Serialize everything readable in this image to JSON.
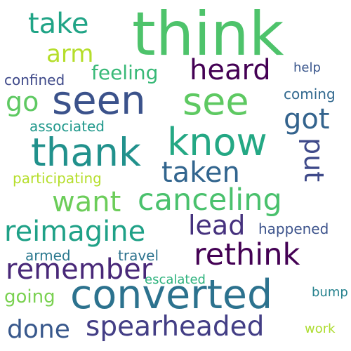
{
  "words": [
    {
      "text": "think",
      "color": "#4ec36b"
    },
    {
      "text": "seen",
      "color": "#3b528b"
    },
    {
      "text": "see",
      "color": "#5ec962"
    },
    {
      "text": "converted",
      "color": "#2c728e"
    },
    {
      "text": "thank",
      "color": "#21918c"
    },
    {
      "text": "know",
      "color": "#24a884"
    },
    {
      "text": "canceling",
      "color": "#4ac16d"
    },
    {
      "text": "reimagine",
      "color": "#1fa187"
    },
    {
      "text": "rethink",
      "color": "#440154"
    },
    {
      "text": "spearheaded",
      "color": "#433e85"
    },
    {
      "text": "remember",
      "color": "#482878"
    },
    {
      "text": "heard",
      "color": "#440154"
    },
    {
      "text": "got",
      "color": "#33638d"
    },
    {
      "text": "taken",
      "color": "#32658e"
    },
    {
      "text": "want",
      "color": "#6ccd5a"
    },
    {
      "text": "lead",
      "color": "#46327e"
    },
    {
      "text": "take",
      "color": "#20a486"
    },
    {
      "text": "put",
      "color": "#3e4989"
    },
    {
      "text": "done",
      "color": "#38588c"
    },
    {
      "text": "arm",
      "color": "#b5de2b"
    },
    {
      "text": "go",
      "color": "#5ec962"
    },
    {
      "text": "feeling",
      "color": "#38b977"
    },
    {
      "text": "going",
      "color": "#7ad151"
    },
    {
      "text": "happened",
      "color": "#3b528b"
    },
    {
      "text": "confined",
      "color": "#3e4989"
    },
    {
      "text": "associated",
      "color": "#1f988b"
    },
    {
      "text": "participating",
      "color": "#b5de2b"
    },
    {
      "text": "coming",
      "color": "#31688e"
    },
    {
      "text": "travel",
      "color": "#2c728e"
    },
    {
      "text": "armed",
      "color": "#2a788e"
    },
    {
      "text": "escalated",
      "color": "#2db27d"
    },
    {
      "text": "help",
      "color": "#39568c"
    },
    {
      "text": "bump",
      "color": "#26828e"
    },
    {
      "text": "work",
      "color": "#addc30"
    }
  ]
}
